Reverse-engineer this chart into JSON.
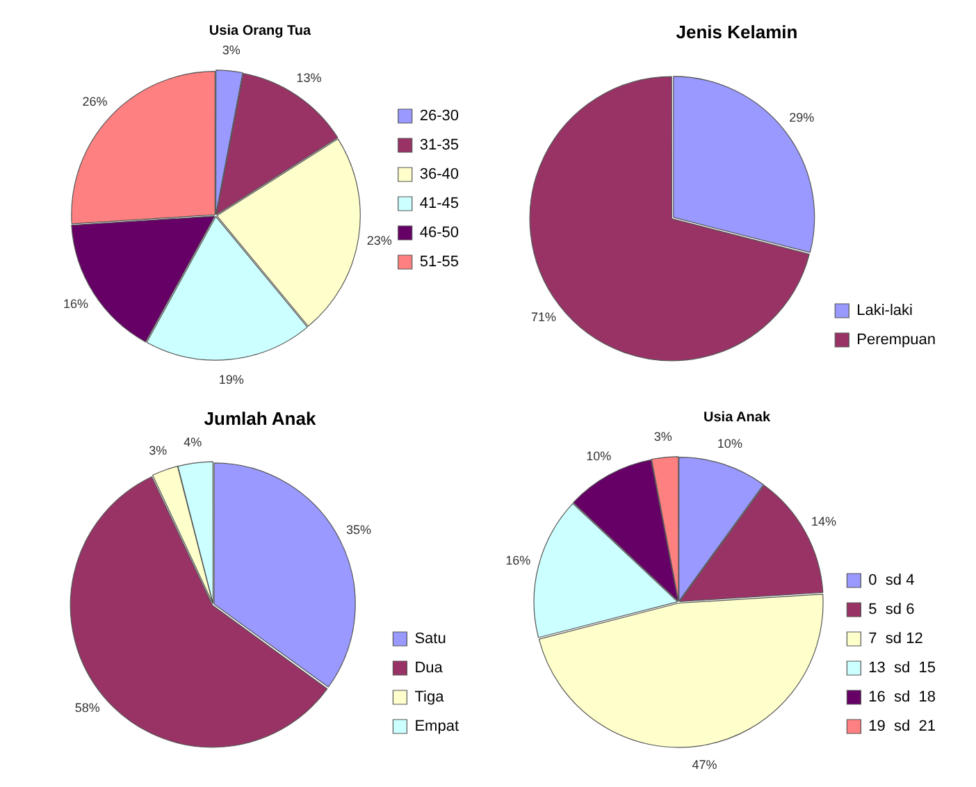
{
  "chart_data": [
    {
      "type": "pie",
      "title": "Usia Orang Tua",
      "categories": [
        "26-30",
        "31-35",
        "36-40",
        "41-45",
        "46-50",
        "51-55"
      ],
      "values": [
        3,
        13,
        23,
        19,
        16,
        26
      ],
      "colors": [
        "#9999ff",
        "#993366",
        "#ffffcc",
        "#ccffff",
        "#660066",
        "#ff8080"
      ],
      "value_labels": [
        "3%",
        "13%",
        "23%",
        "19%",
        "16%",
        "26%"
      ],
      "legend": "right"
    },
    {
      "type": "pie",
      "title": "Jenis Kelamin",
      "categories": [
        "Laki-laki",
        "Perempuan"
      ],
      "values": [
        29,
        71
      ],
      "colors": [
        "#9999ff",
        "#993366"
      ],
      "value_labels": [
        "29%",
        "71%"
      ],
      "legend": "bottom right"
    },
    {
      "type": "pie",
      "title": "Jumlah Anak",
      "categories": [
        "Satu",
        "Dua",
        "Tiga",
        "Empat"
      ],
      "values": [
        35,
        58,
        3,
        4
      ],
      "colors": [
        "#9999ff",
        "#993366",
        "#ffffcc",
        "#ccffff"
      ],
      "value_labels": [
        "35%",
        "58%",
        "3%",
        "4%"
      ],
      "legend": "bottom right"
    },
    {
      "type": "pie",
      "title": "Usia Anak",
      "categories": [
        "0  sd 4",
        "5  sd 6",
        "7  sd 12",
        "13  sd  15",
        "16  sd  18",
        "19  sd  21"
      ],
      "values": [
        10,
        14,
        47,
        16,
        10,
        3
      ],
      "colors": [
        "#9999ff",
        "#993366",
        "#ffffcc",
        "#ccffff",
        "#660066",
        "#ff8080"
      ],
      "value_labels": [
        "10%",
        "14%",
        "47%",
        "16%",
        "10%",
        "3%"
      ],
      "legend": "bottom right"
    }
  ]
}
